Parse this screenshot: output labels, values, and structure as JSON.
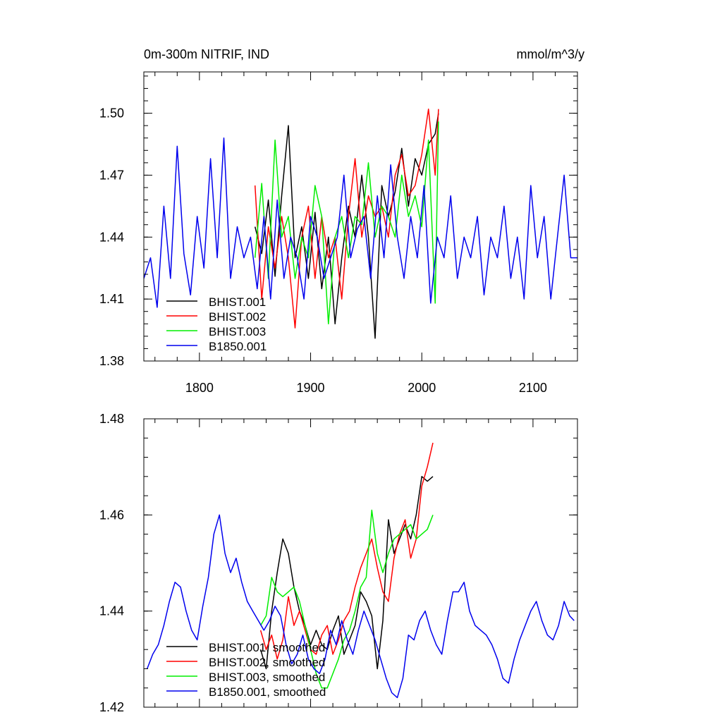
{
  "chart_data": [
    {
      "type": "line",
      "title": "0m-300m NITRIF, IND",
      "units": "mmol/m^3/y",
      "xlim": [
        1750,
        2140
      ],
      "ylim": [
        1.38,
        1.52
      ],
      "xticks": [
        1800,
        1900,
        2000,
        2100
      ],
      "xtick_labels": [
        "1800",
        "1900",
        "2000",
        "2100"
      ],
      "yticks": [
        1.38,
        1.41,
        1.44,
        1.47,
        1.5
      ],
      "ytick_labels": [
        "1.38",
        "1.41",
        "1.44",
        "1.47",
        "1.50"
      ],
      "legend_position": "bottom-left",
      "series": [
        {
          "name": "BHIST.001",
          "color": "#000000",
          "x": [
            1850,
            1856,
            1862,
            1868,
            1874,
            1880,
            1886,
            1892,
            1898,
            1904,
            1910,
            1916,
            1922,
            1928,
            1934,
            1940,
            1946,
            1952,
            1958,
            1964,
            1970,
            1976,
            1982,
            1988,
            1994,
            2000,
            2006,
            2012,
            2015
          ],
          "y": [
            1.445,
            1.432,
            1.458,
            1.421,
            1.46,
            1.494,
            1.43,
            1.445,
            1.42,
            1.452,
            1.415,
            1.44,
            1.398,
            1.43,
            1.455,
            1.44,
            1.47,
            1.44,
            1.391,
            1.465,
            1.45,
            1.462,
            1.483,
            1.455,
            1.478,
            1.47,
            1.485,
            1.49,
            1.5
          ]
        },
        {
          "name": "BHIST.002",
          "color": "#ff0000",
          "x": [
            1850,
            1856,
            1862,
            1868,
            1874,
            1880,
            1886,
            1892,
            1898,
            1904,
            1910,
            1916,
            1922,
            1928,
            1934,
            1940,
            1946,
            1952,
            1958,
            1964,
            1970,
            1976,
            1982,
            1988,
            1994,
            2000,
            2006,
            2012,
            2015
          ],
          "y": [
            1.465,
            1.41,
            1.445,
            1.425,
            1.45,
            1.43,
            1.396,
            1.44,
            1.455,
            1.42,
            1.45,
            1.43,
            1.44,
            1.41,
            1.45,
            1.478,
            1.44,
            1.46,
            1.45,
            1.455,
            1.44,
            1.47,
            1.48,
            1.46,
            1.465,
            1.48,
            1.502,
            1.47,
            1.502
          ]
        },
        {
          "name": "BHIST.003",
          "color": "#00ee00",
          "x": [
            1850,
            1856,
            1862,
            1868,
            1874,
            1880,
            1886,
            1892,
            1898,
            1904,
            1910,
            1916,
            1922,
            1928,
            1934,
            1940,
            1946,
            1952,
            1958,
            1964,
            1970,
            1976,
            1982,
            1988,
            1994,
            2000,
            2006,
            2012,
            2015
          ],
          "y": [
            1.43,
            1.466,
            1.42,
            1.487,
            1.44,
            1.45,
            1.42,
            1.44,
            1.43,
            1.465,
            1.45,
            1.398,
            1.44,
            1.45,
            1.43,
            1.45,
            1.446,
            1.476,
            1.44,
            1.455,
            1.45,
            1.44,
            1.47,
            1.45,
            1.46,
            1.445,
            1.487,
            1.408,
            1.496
          ]
        },
        {
          "name": "B1850.001",
          "color": "#0000ee",
          "x": [
            1750,
            1756,
            1762,
            1768,
            1774,
            1780,
            1786,
            1792,
            1798,
            1804,
            1810,
            1816,
            1822,
            1828,
            1834,
            1840,
            1846,
            1852,
            1858,
            1864,
            1870,
            1876,
            1882,
            1888,
            1894,
            1900,
            1906,
            1912,
            1918,
            1924,
            1930,
            1936,
            1942,
            1948,
            1954,
            1960,
            1966,
            1972,
            1978,
            1984,
            1990,
            1996,
            2002,
            2008,
            2014,
            2020,
            2026,
            2032,
            2038,
            2044,
            2050,
            2056,
            2062,
            2068,
            2074,
            2080,
            2086,
            2092,
            2098,
            2104,
            2110,
            2116,
            2122,
            2128,
            2134,
            2140
          ],
          "y": [
            1.42,
            1.43,
            1.406,
            1.455,
            1.42,
            1.484,
            1.432,
            1.412,
            1.45,
            1.425,
            1.478,
            1.43,
            1.488,
            1.42,
            1.445,
            1.43,
            1.44,
            1.415,
            1.45,
            1.41,
            1.458,
            1.42,
            1.44,
            1.43,
            1.41,
            1.45,
            1.44,
            1.42,
            1.43,
            1.44,
            1.47,
            1.43,
            1.444,
            1.45,
            1.42,
            1.46,
            1.43,
            1.475,
            1.44,
            1.42,
            1.45,
            1.43,
            1.465,
            1.408,
            1.44,
            1.43,
            1.46,
            1.42,
            1.44,
            1.43,
            1.45,
            1.412,
            1.44,
            1.43,
            1.455,
            1.42,
            1.44,
            1.41,
            1.465,
            1.43,
            1.45,
            1.41,
            1.44,
            1.47,
            1.43,
            1.43
          ]
        }
      ]
    },
    {
      "type": "line",
      "title": "",
      "xlim": [
        1750,
        2140
      ],
      "ylim": [
        1.42,
        1.48
      ],
      "xticks": [
        1800,
        1900,
        2000,
        2100
      ],
      "yticks": [
        1.42,
        1.44,
        1.46,
        1.48
      ],
      "ytick_labels": [
        "1.42",
        "1.44",
        "1.46",
        "1.48"
      ],
      "legend_position": "bottom-left",
      "series": [
        {
          "name": "BHIST.001, smoothed",
          "color": "#000000",
          "x": [
            1855,
            1860,
            1865,
            1870,
            1875,
            1880,
            1885,
            1890,
            1895,
            1900,
            1905,
            1910,
            1915,
            1920,
            1925,
            1930,
            1935,
            1940,
            1945,
            1950,
            1955,
            1960,
            1965,
            1970,
            1975,
            1980,
            1985,
            1990,
            1995,
            2000,
            2005,
            2010
          ],
          "y": [
            1.432,
            1.428,
            1.44,
            1.448,
            1.455,
            1.452,
            1.445,
            1.44,
            1.437,
            1.433,
            1.436,
            1.433,
            1.432,
            1.436,
            1.439,
            1.431,
            1.434,
            1.437,
            1.444,
            1.442,
            1.439,
            1.428,
            1.438,
            1.459,
            1.452,
            1.455,
            1.458,
            1.455,
            1.46,
            1.468,
            1.467,
            1.468
          ]
        },
        {
          "name": "BHIST.002, smoothed",
          "color": "#ff0000",
          "x": [
            1855,
            1860,
            1865,
            1870,
            1875,
            1880,
            1885,
            1890,
            1895,
            1900,
            1905,
            1910,
            1915,
            1920,
            1925,
            1930,
            1935,
            1940,
            1945,
            1950,
            1955,
            1960,
            1965,
            1970,
            1975,
            1980,
            1985,
            1990,
            1995,
            2000,
            2005,
            2010
          ],
          "y": [
            1.436,
            1.432,
            1.435,
            1.43,
            1.434,
            1.443,
            1.437,
            1.44,
            1.436,
            1.432,
            1.431,
            1.435,
            1.437,
            1.431,
            1.434,
            1.438,
            1.44,
            1.445,
            1.449,
            1.452,
            1.455,
            1.449,
            1.444,
            1.442,
            1.451,
            1.456,
            1.459,
            1.451,
            1.455,
            1.466,
            1.47,
            1.475
          ]
        },
        {
          "name": "BHIST.003, smoothed",
          "color": "#00ee00",
          "x": [
            1855,
            1860,
            1865,
            1870,
            1875,
            1880,
            1885,
            1890,
            1895,
            1900,
            1905,
            1910,
            1915,
            1920,
            1925,
            1930,
            1935,
            1940,
            1945,
            1950,
            1955,
            1960,
            1965,
            1970,
            1975,
            1980,
            1985,
            1990,
            1995,
            2000,
            2005,
            2010
          ],
          "y": [
            1.437,
            1.439,
            1.447,
            1.444,
            1.443,
            1.444,
            1.445,
            1.442,
            1.437,
            1.432,
            1.427,
            1.424,
            1.424,
            1.427,
            1.43,
            1.434,
            1.436,
            1.44,
            1.445,
            1.447,
            1.461,
            1.452,
            1.448,
            1.452,
            1.455,
            1.456,
            1.457,
            1.458,
            1.455,
            1.456,
            1.457,
            1.46
          ]
        },
        {
          "name": "B1850.001, smoothed",
          "color": "#0000ee",
          "x": [
            1753,
            1758,
            1763,
            1768,
            1773,
            1778,
            1783,
            1788,
            1793,
            1798,
            1803,
            1808,
            1813,
            1818,
            1823,
            1828,
            1833,
            1838,
            1843,
            1848,
            1853,
            1858,
            1863,
            1868,
            1873,
            1878,
            1883,
            1888,
            1893,
            1898,
            1903,
            1908,
            1913,
            1918,
            1923,
            1928,
            1933,
            1938,
            1943,
            1948,
            1953,
            1958,
            1963,
            1968,
            1973,
            1978,
            1983,
            1988,
            1993,
            1998,
            2003,
            2008,
            2013,
            2018,
            2023,
            2028,
            2033,
            2038,
            2043,
            2048,
            2053,
            2058,
            2063,
            2068,
            2073,
            2078,
            2083,
            2088,
            2093,
            2098,
            2103,
            2108,
            2113,
            2118,
            2123,
            2128,
            2133,
            2137
          ],
          "y": [
            1.428,
            1.431,
            1.433,
            1.437,
            1.442,
            1.446,
            1.445,
            1.44,
            1.436,
            1.434,
            1.441,
            1.447,
            1.456,
            1.46,
            1.452,
            1.448,
            1.451,
            1.446,
            1.442,
            1.44,
            1.438,
            1.436,
            1.438,
            1.441,
            1.439,
            1.433,
            1.429,
            1.431,
            1.435,
            1.43,
            1.428,
            1.427,
            1.43,
            1.436,
            1.433,
            1.438,
            1.434,
            1.431,
            1.436,
            1.44,
            1.437,
            1.434,
            1.43,
            1.426,
            1.423,
            1.422,
            1.426,
            1.435,
            1.434,
            1.438,
            1.44,
            1.436,
            1.433,
            1.431,
            1.438,
            1.444,
            1.444,
            1.446,
            1.44,
            1.437,
            1.436,
            1.435,
            1.433,
            1.43,
            1.426,
            1.425,
            1.43,
            1.434,
            1.437,
            1.44,
            1.442,
            1.438,
            1.435,
            1.434,
            1.437,
            1.442,
            1.439,
            1.438
          ]
        }
      ]
    }
  ]
}
